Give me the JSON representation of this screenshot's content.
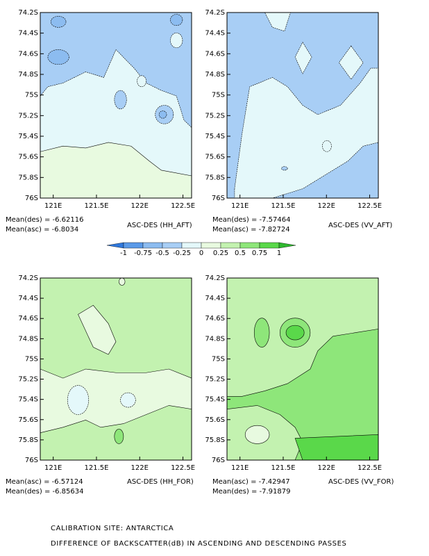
{
  "chart_data": [
    {
      "type": "contour",
      "title": "ASC-DES (HH_AFT)",
      "annotations": [
        "Mean(des) = -6.62116",
        "Mean(asc) = -6.8034"
      ],
      "xlim": [
        120.85,
        122.6
      ],
      "xticks": [
        {
          "value": 121,
          "label": "121E"
        },
        {
          "value": 121.5,
          "label": "121.5E"
        },
        {
          "value": 122,
          "label": "122E"
        },
        {
          "value": 122.5,
          "label": "122.5E"
        }
      ],
      "ylim": [
        -76,
        -74.2
      ],
      "yticks": [
        {
          "value": -74.2,
          "label": "74.2S"
        },
        {
          "value": -74.4,
          "label": "74.4S"
        },
        {
          "value": -74.6,
          "label": "74.6S"
        },
        {
          "value": -74.8,
          "label": "74.8S"
        },
        {
          "value": -75,
          "label": "75S"
        },
        {
          "value": -75.2,
          "label": "75.2S"
        },
        {
          "value": -75.4,
          "label": "75.4S"
        },
        {
          "value": -75.6,
          "label": "75.6S"
        },
        {
          "value": -75.8,
          "label": "75.8S"
        },
        {
          "value": -76,
          "label": "76S"
        }
      ]
    },
    {
      "type": "contour",
      "title": "ASC-DES (VV_AFT)",
      "annotations": [
        "Mean(des) = -7.57464",
        "Mean(asc) = -7.82724"
      ],
      "xlim": [
        120.85,
        122.6
      ],
      "xticks": [
        {
          "value": 121,
          "label": "121E"
        },
        {
          "value": 121.5,
          "label": "121.5E"
        },
        {
          "value": 122,
          "label": "122E"
        },
        {
          "value": 122.5,
          "label": "122.5E"
        }
      ],
      "ylim": [
        -76,
        -74.2
      ],
      "yticks": [
        {
          "value": -74.2,
          "label": "74.2S"
        },
        {
          "value": -74.4,
          "label": "74.4S"
        },
        {
          "value": -74.6,
          "label": "74.6S"
        },
        {
          "value": -74.8,
          "label": "74.8S"
        },
        {
          "value": -75,
          "label": "75S"
        },
        {
          "value": -75.2,
          "label": "75.2S"
        },
        {
          "value": -75.4,
          "label": "75.4S"
        },
        {
          "value": -75.6,
          "label": "75.6S"
        },
        {
          "value": -75.8,
          "label": "75.8S"
        },
        {
          "value": -76,
          "label": "76S"
        }
      ]
    },
    {
      "type": "contour",
      "title": "ASC-DES (HH_FOR)",
      "annotations": [
        "Mean(asc) = -6.57124",
        "Mean(des) = -6.85634"
      ],
      "xlim": [
        120.85,
        122.6
      ],
      "xticks": [
        {
          "value": 121,
          "label": "121E"
        },
        {
          "value": 121.5,
          "label": "121.5E"
        },
        {
          "value": 122,
          "label": "122E"
        },
        {
          "value": 122.5,
          "label": "122.5E"
        }
      ],
      "ylim": [
        -76,
        -74.2
      ],
      "yticks": [
        {
          "value": -74.2,
          "label": "74.2S"
        },
        {
          "value": -74.4,
          "label": "74.4S"
        },
        {
          "value": -74.6,
          "label": "74.6S"
        },
        {
          "value": -74.8,
          "label": "74.8S"
        },
        {
          "value": -75,
          "label": "75S"
        },
        {
          "value": -75.2,
          "label": "75.2S"
        },
        {
          "value": -75.4,
          "label": "75.4S"
        },
        {
          "value": -75.6,
          "label": "75.6S"
        },
        {
          "value": -75.8,
          "label": "75.8S"
        },
        {
          "value": -76,
          "label": "76S"
        }
      ]
    },
    {
      "type": "contour",
      "title": "ASC-DES (VV_FOR)",
      "annotations": [
        "Mean(asc) = -7.42947",
        "Mean(des) = -7.91879"
      ],
      "xlim": [
        120.85,
        122.6
      ],
      "xticks": [
        {
          "value": 121,
          "label": "121E"
        },
        {
          "value": 121.5,
          "label": "121.5E"
        },
        {
          "value": 122,
          "label": "122E"
        },
        {
          "value": 122.5,
          "label": "122.5E"
        }
      ],
      "ylim": [
        -76,
        -74.2
      ],
      "yticks": [
        {
          "value": -74.2,
          "label": "74.2S"
        },
        {
          "value": -74.4,
          "label": "74.4S"
        },
        {
          "value": -74.6,
          "label": "74.6S"
        },
        {
          "value": -74.8,
          "label": "74.8S"
        },
        {
          "value": -75,
          "label": "75S"
        },
        {
          "value": -75.2,
          "label": "75.2S"
        },
        {
          "value": -75.4,
          "label": "75.4S"
        },
        {
          "value": -75.6,
          "label": "75.6S"
        },
        {
          "value": -75.8,
          "label": "75.8S"
        },
        {
          "value": -76,
          "label": "76S"
        }
      ]
    }
  ],
  "colorbar": {
    "levels": [
      -1,
      -0.75,
      -0.5,
      -0.25,
      0,
      0.25,
      0.5,
      0.75,
      1
    ],
    "colors": [
      "#2f78dc",
      "#5a9ae8",
      "#8cbcf0",
      "#a8cef5",
      "#e4f8fa",
      "#e8fae0",
      "#c3f2b0",
      "#8ee67a",
      "#5ad84a",
      "#2fb82f"
    ]
  },
  "footer": [
    "CALIBRATION SITE: ANTARCTICA",
    "DIFFERENCE OF BACKSCATTER(dB) IN ASCENDING AND DESCENDING PASSES"
  ]
}
